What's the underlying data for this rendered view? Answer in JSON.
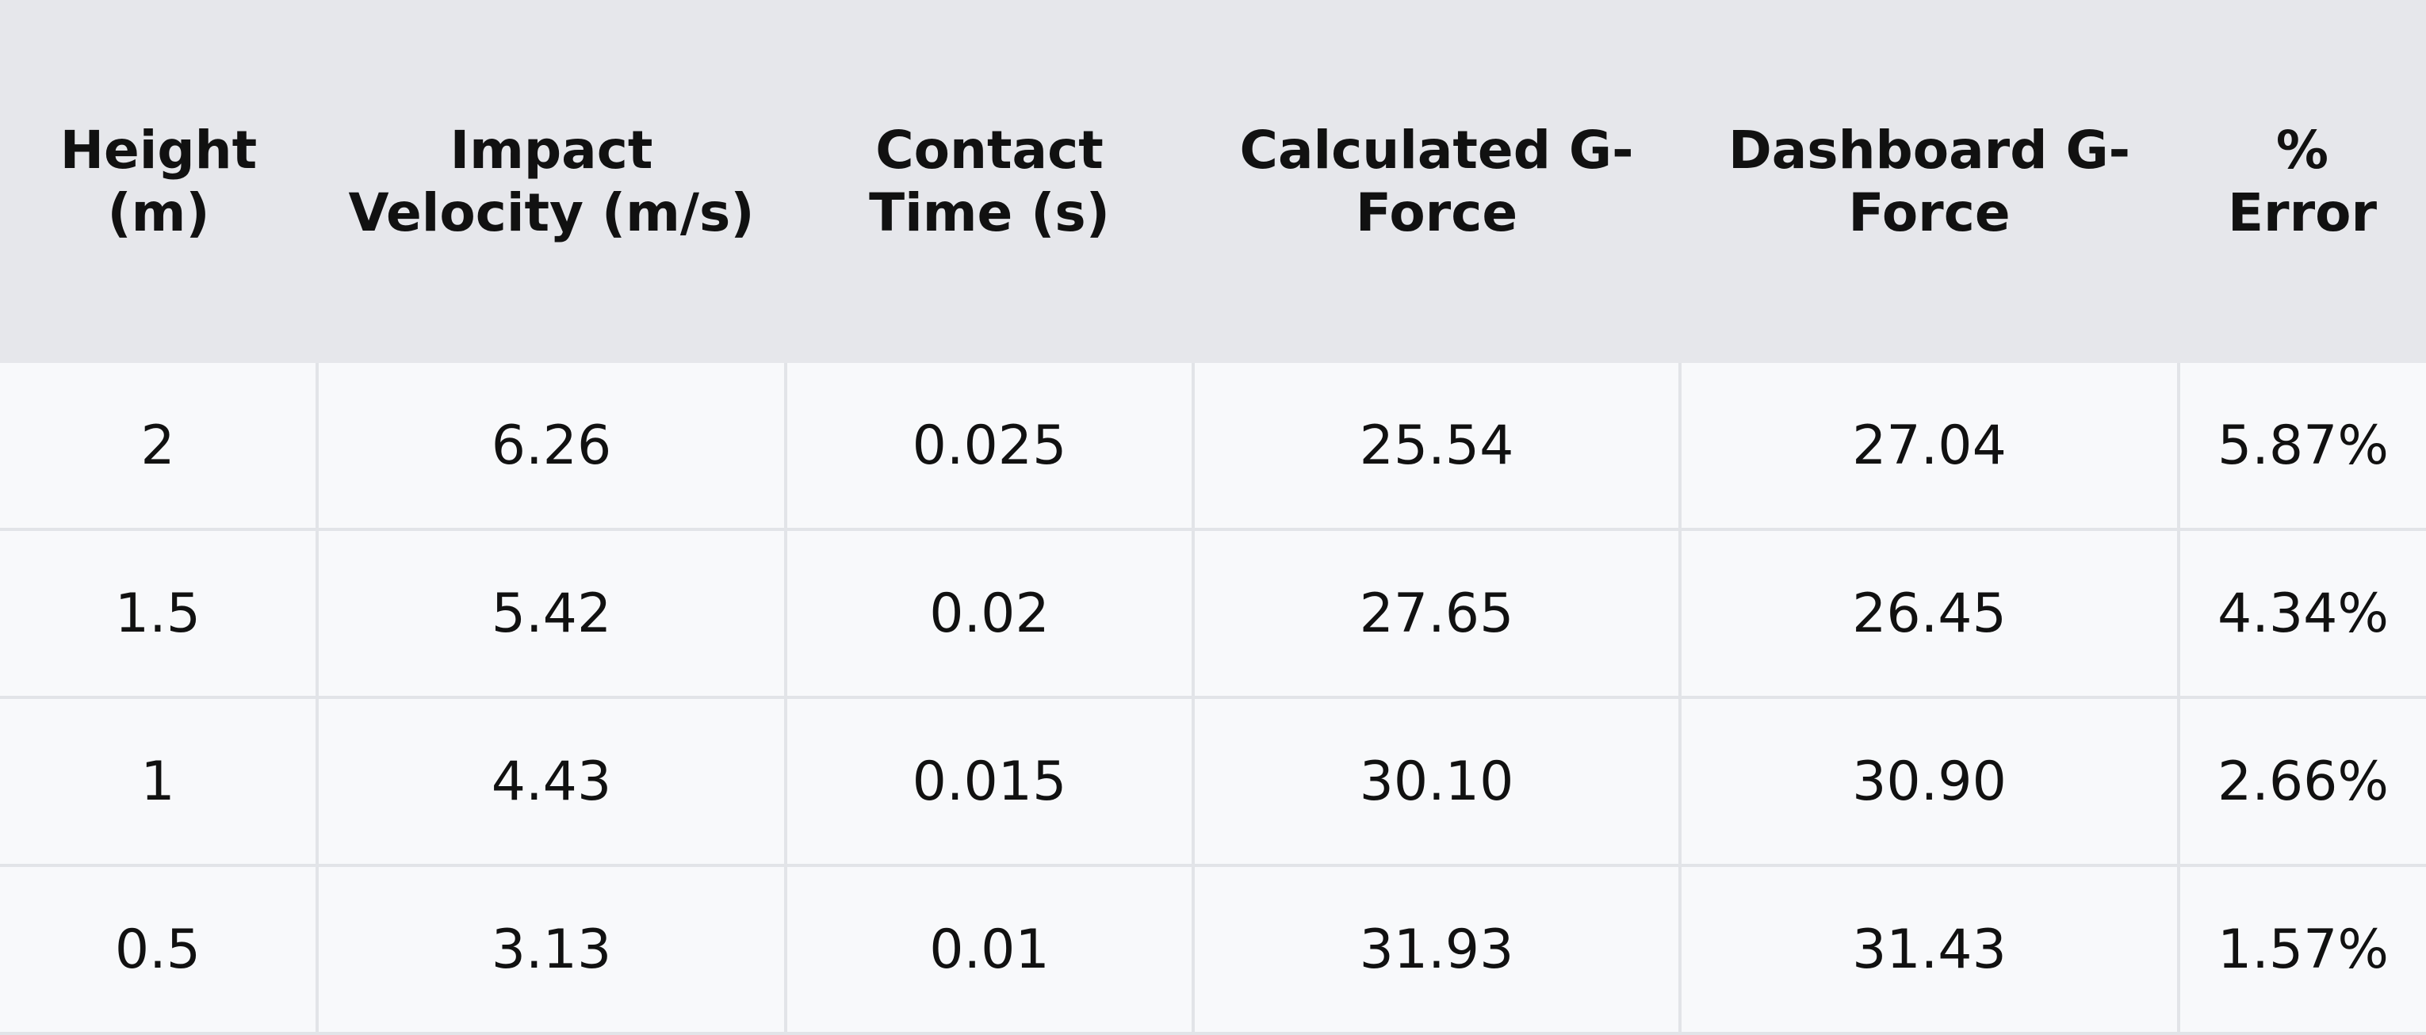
{
  "table": {
    "headers": [
      "Height (m)",
      "Impact Velocity (m/s)",
      "Contact Time (s)",
      "Calculated G-Force",
      "Dashboard G-Force",
      "% Error"
    ],
    "rows": [
      [
        "2",
        "6.26",
        "0.025",
        "25.54",
        "27.04",
        "5.87%"
      ],
      [
        "1.5",
        "5.42",
        "0.02",
        "27.65",
        "26.45",
        "4.34%"
      ],
      [
        "1",
        "4.43",
        "0.015",
        "30.10",
        "30.90",
        "2.66%"
      ],
      [
        "0.5",
        "3.13",
        "0.01",
        "31.93",
        "31.43",
        "1.57%"
      ]
    ]
  }
}
